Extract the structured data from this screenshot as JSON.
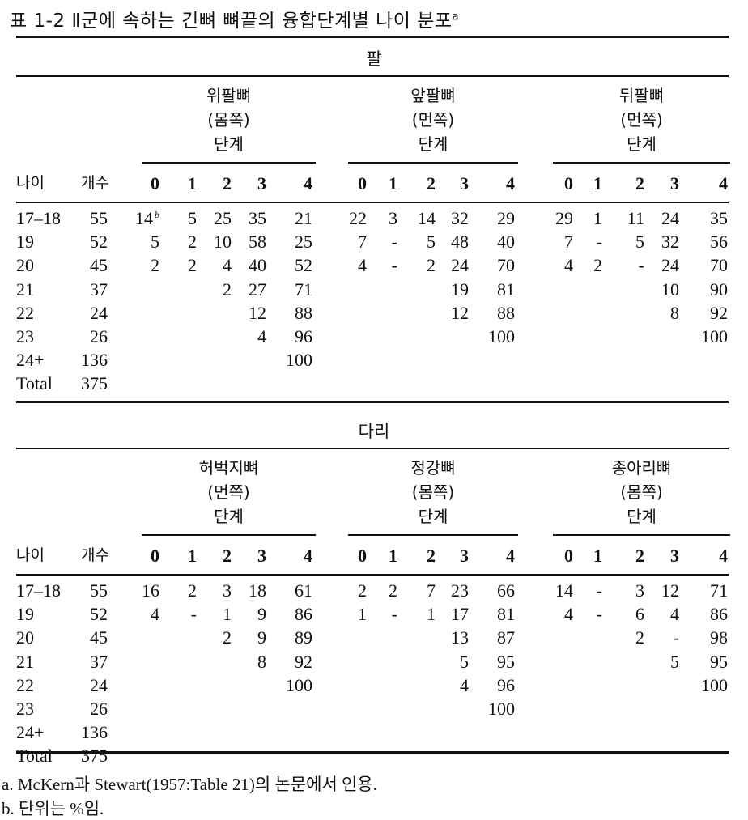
{
  "title": {
    "text": "표 1-2  Ⅱ군에 속하는 긴뼈 뼈끝의 융합단계별 나이 분포",
    "sup": "a"
  },
  "sections": [
    {
      "label": "팔",
      "groups": [
        {
          "name": "위팔뼈",
          "side": "(몸쪽)",
          "stage": "단계"
        },
        {
          "name": "앞팔뼈",
          "side": "(먼쪽)",
          "stage": "단계"
        },
        {
          "name": "뒤팔뼈",
          "side": "(먼쪽)",
          "stage": "단계"
        }
      ],
      "rows": [
        [
          "17–18",
          "55",
          "14",
          "5",
          "25",
          "35",
          "21",
          "22",
          "3",
          "14",
          "32",
          "29",
          "29",
          "1",
          "11",
          "24",
          "35"
        ],
        [
          "19",
          "52",
          "5",
          "2",
          "10",
          "58",
          "25",
          "7",
          "-",
          "5",
          "48",
          "40",
          "7",
          "-",
          "5",
          "32",
          "56"
        ],
        [
          "20",
          "45",
          "2",
          "2",
          "4",
          "40",
          "52",
          "4",
          "-",
          "2",
          "24",
          "70",
          "4",
          "2",
          "-",
          "24",
          "70"
        ],
        [
          "21",
          "37",
          "",
          "",
          "2",
          "27",
          "71",
          "",
          "",
          "",
          "19",
          "81",
          "",
          "",
          "",
          "10",
          "90"
        ],
        [
          "22",
          "24",
          "",
          "",
          "",
          "12",
          "88",
          "",
          "",
          "",
          "12",
          "88",
          "",
          "",
          "",
          "8",
          "92"
        ],
        [
          "23",
          "26",
          "",
          "",
          "",
          "4",
          "96",
          "",
          "",
          "",
          "",
          "100",
          "",
          "",
          "",
          "",
          "100"
        ],
        [
          "24+",
          "136",
          "",
          "",
          "",
          "",
          "100",
          "",
          "",
          "",
          "",
          "",
          "",
          "",
          "",
          "",
          ""
        ],
        [
          "Total",
          "375",
          "",
          "",
          "",
          "",
          "",
          "",
          "",
          "",
          "",
          "",
          "",
          "",
          "",
          "",
          ""
        ]
      ],
      "first_cell_footnote": "b"
    },
    {
      "label": "다리",
      "groups": [
        {
          "name": "허벅지뼈",
          "side": "(먼쪽)",
          "stage": "단계"
        },
        {
          "name": "정강뼈",
          "side": "(몸쪽)",
          "stage": "단계"
        },
        {
          "name": "종아리뼈",
          "side": "(몸쪽)",
          "stage": "단계"
        }
      ],
      "rows": [
        [
          "17–18",
          "55",
          "16",
          "2",
          "3",
          "18",
          "61",
          "2",
          "2",
          "7",
          "23",
          "66",
          "14",
          "-",
          "3",
          "12",
          "71"
        ],
        [
          "19",
          "52",
          "4",
          "-",
          "1",
          "9",
          "86",
          "1",
          "-",
          "1",
          "17",
          "81",
          "4",
          "-",
          "6",
          "4",
          "86"
        ],
        [
          "20",
          "45",
          "",
          "",
          "2",
          "9",
          "89",
          "",
          "",
          "",
          "13",
          "87",
          "",
          "",
          "2",
          "-",
          "98"
        ],
        [
          "21",
          "37",
          "",
          "",
          "",
          "8",
          "92",
          "",
          "",
          "",
          "5",
          "95",
          "",
          "",
          "",
          "5",
          "95"
        ],
        [
          "22",
          "24",
          "",
          "",
          "",
          "",
          "100",
          "",
          "",
          "",
          "4",
          "96",
          "",
          "",
          "",
          "",
          "100"
        ],
        [
          "23",
          "26",
          "",
          "",
          "",
          "",
          "",
          "",
          "",
          "",
          "",
          "100",
          "",
          "",
          "",
          "",
          ""
        ],
        [
          "24+",
          "136",
          "",
          "",
          "",
          "",
          "",
          "",
          "",
          "",
          "",
          "",
          "",
          "",
          "",
          "",
          ""
        ],
        [
          "Total",
          "375",
          "",
          "",
          "",
          "",
          "",
          "",
          "",
          "",
          "",
          "",
          "",
          "",
          "",
          "",
          ""
        ]
      ],
      "first_cell_footnote": ""
    }
  ],
  "columns": {
    "age": "나이",
    "count": "개수",
    "stages": [
      "0",
      "1",
      "2",
      "3",
      "4"
    ]
  },
  "footnotes": [
    "a. McKern과 Stewart(1957:Table 21)의 논문에서 인용.",
    "b. 단위는 %임."
  ]
}
